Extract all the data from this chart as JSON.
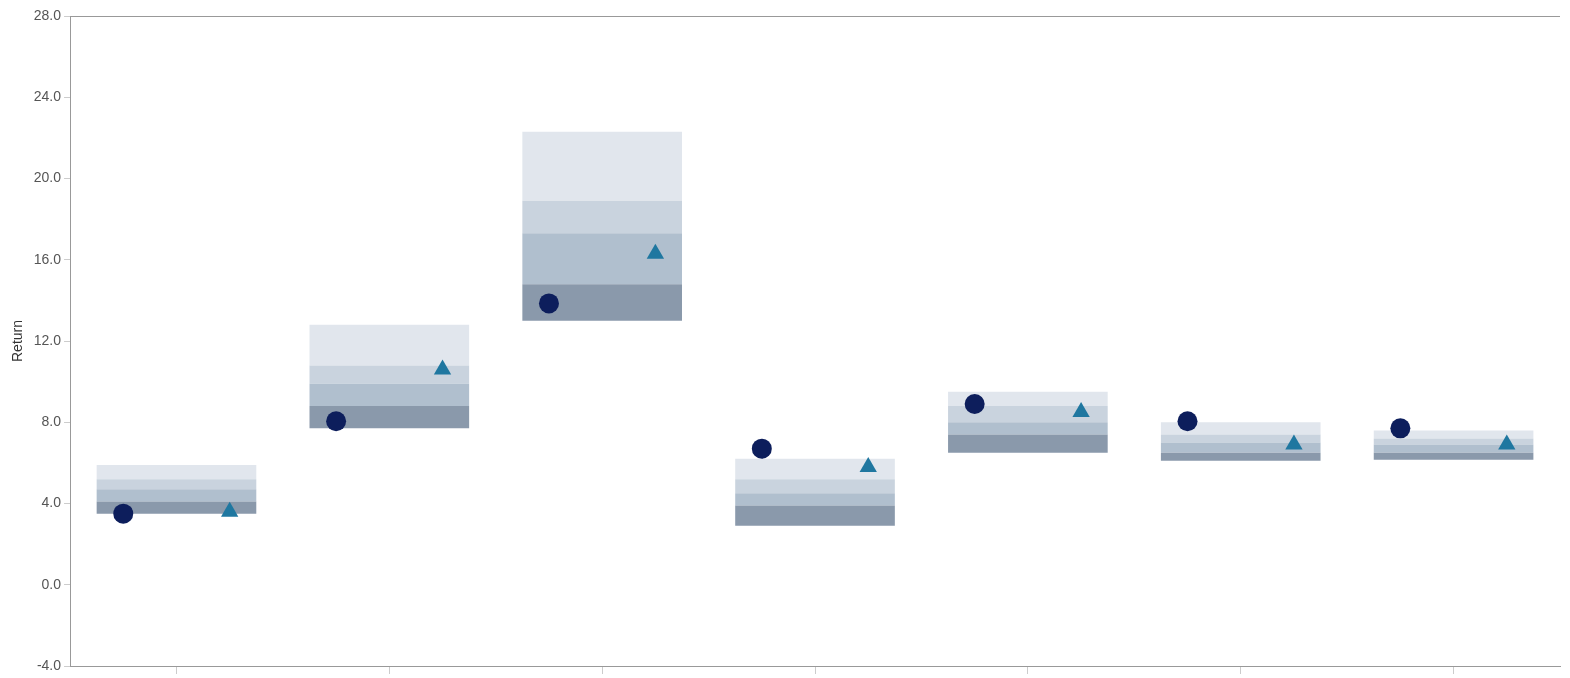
{
  "chart_data": {
    "type": "bar",
    "ylabel": "Return",
    "categories": [
      null,
      null,
      null,
      null,
      null,
      null,
      null
    ],
    "series": [
      {
        "color": "#8a99ab",
        "base": [
          3.5,
          7.7,
          13.0,
          2.9,
          6.5,
          6.1,
          6.15
        ],
        "values": [
          0.6,
          1.1,
          1.8,
          1.0,
          0.9,
          0.4,
          0.35
        ]
      },
      {
        "color": "#b0bfce",
        "base": [
          4.1,
          8.8,
          14.8,
          3.9,
          7.4,
          6.5,
          6.5
        ],
        "values": [
          0.6,
          1.1,
          2.5,
          0.6,
          0.6,
          0.5,
          0.4
        ]
      },
      {
        "color": "#c9d3de",
        "base": [
          4.7,
          9.9,
          17.3,
          4.5,
          8.0,
          7.0,
          6.9
        ],
        "values": [
          0.5,
          0.9,
          1.6,
          0.7,
          0.8,
          0.4,
          0.3
        ]
      },
      {
        "color": "#e1e6ed",
        "base": [
          5.2,
          10.8,
          18.9,
          5.2,
          8.8,
          7.4,
          7.2
        ],
        "values": [
          0.7,
          2.0,
          3.4,
          1.0,
          0.7,
          0.6,
          0.4
        ]
      },
      {
        "type": "scatter",
        "marker": "circle",
        "color": "#0d1e5c",
        "values": [
          3.5,
          8.05,
          13.85,
          6.7,
          8.9,
          8.05,
          7.7
        ]
      },
      {
        "type": "scatter",
        "marker": "triangle",
        "color": "#1f77a0",
        "values": [
          3.6,
          10.6,
          16.3,
          5.8,
          8.5,
          6.9,
          6.9
        ]
      }
    ],
    "ylim": [
      -4,
      28
    ],
    "yticks": [
      {
        "value": -4,
        "label": "-4.0"
      },
      {
        "value": 0,
        "label": "0.0"
      },
      {
        "value": 4,
        "label": "4.0"
      },
      {
        "value": 8,
        "label": "8.0"
      },
      {
        "value": 12,
        "label": "12.0"
      },
      {
        "value": 16,
        "label": "16.0"
      },
      {
        "value": 20,
        "label": "20.0"
      },
      {
        "value": 24,
        "label": "24.0"
      },
      {
        "value": 28,
        "label": "28.0"
      }
    ],
    "tick_labels": "y",
    "grid": false,
    "legend": false
  }
}
